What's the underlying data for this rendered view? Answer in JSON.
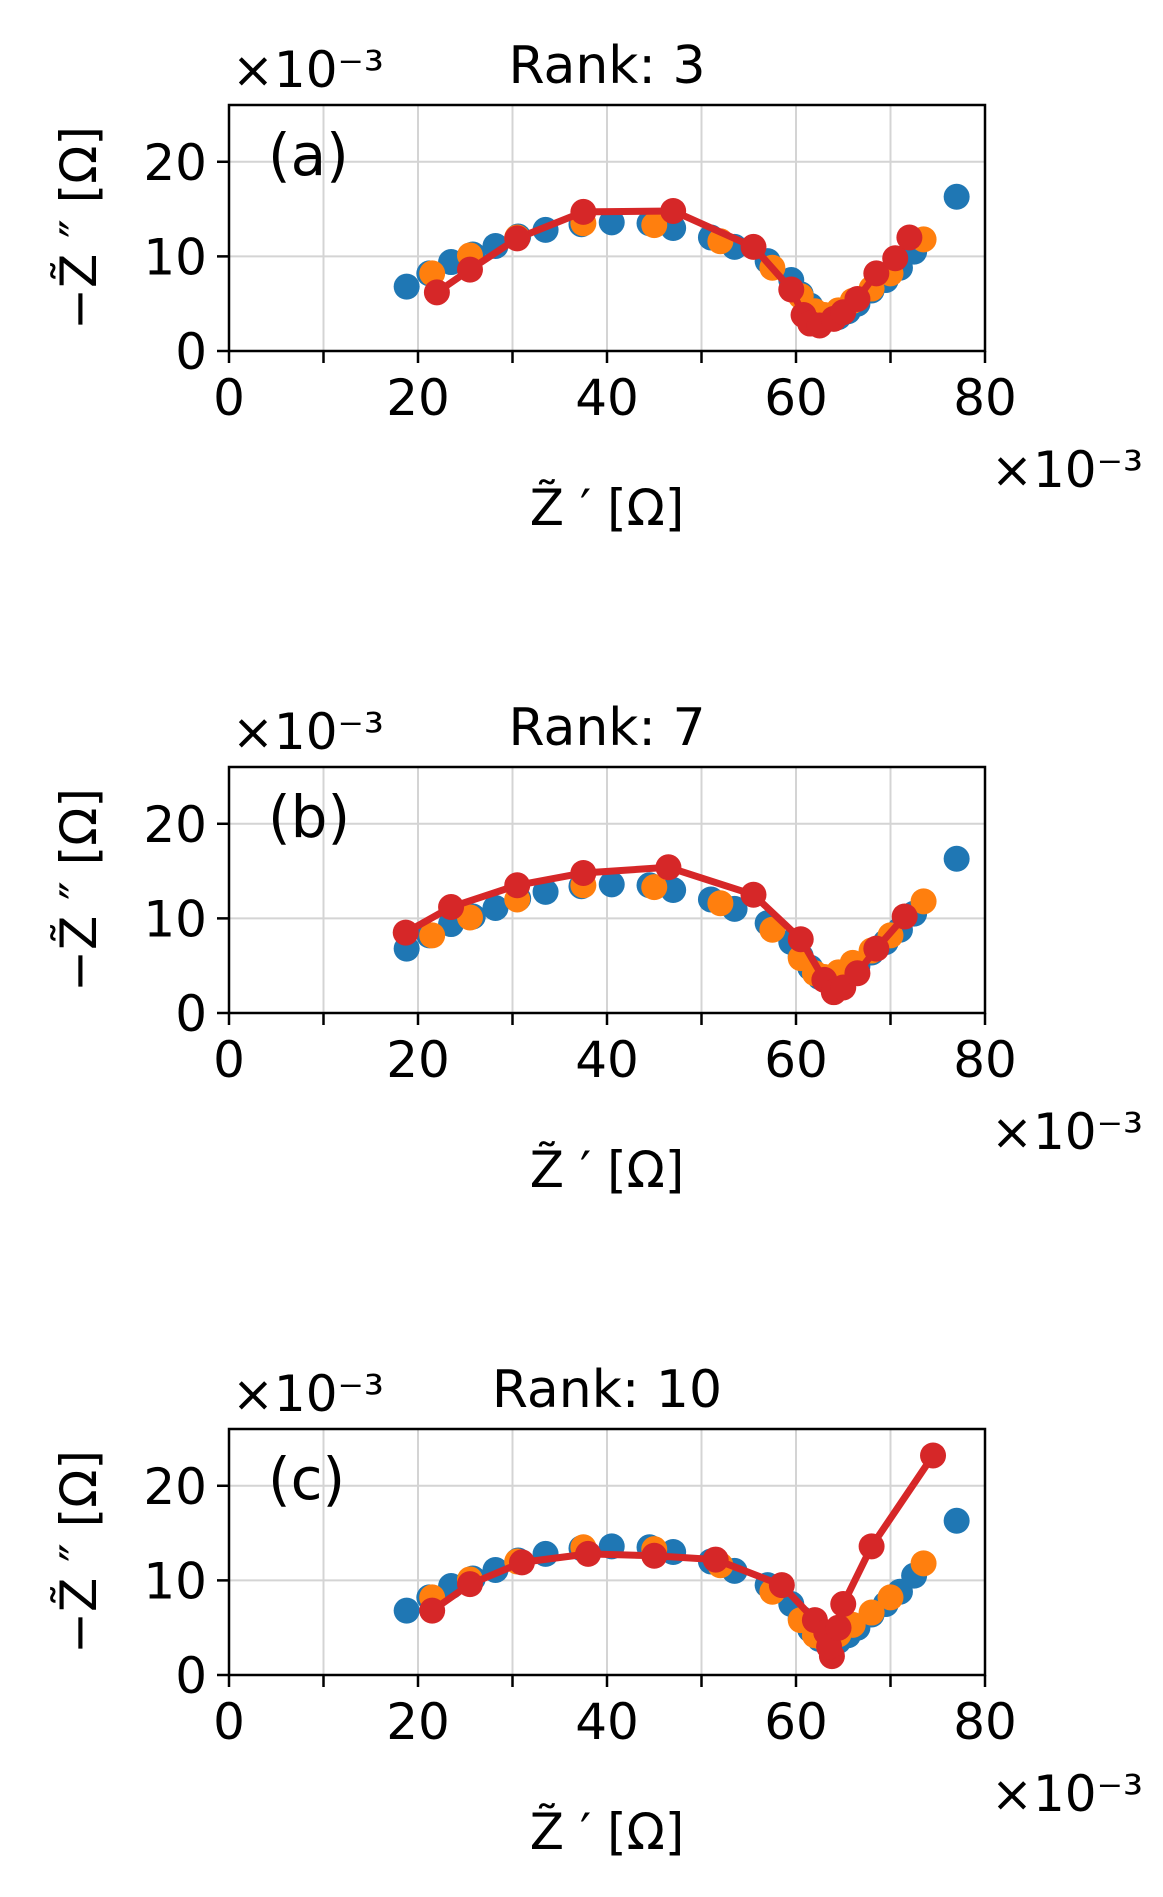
{
  "chart_data": [
    {
      "type": "scatter",
      "title": "Rank: 3",
      "panel_label": "(a)",
      "xlabel": "Z̃ ′ [Ω]",
      "ylabel": "−Z̃ ″ [Ω]",
      "x_multiplier": "×10⁻³",
      "y_multiplier": "×10⁻³",
      "xlim": [
        0,
        80
      ],
      "ylim": [
        0,
        26
      ],
      "xticks": [
        "0",
        "20",
        "40",
        "60",
        "80"
      ],
      "yticks": [
        "0",
        "10",
        "20"
      ],
      "grid": true,
      "series": [
        {
          "color": "#1f77b4",
          "style": "markers",
          "x": [
            18.8,
            21.2,
            23.5,
            25.8,
            28.2,
            30.6,
            33.5,
            37.3,
            40.5,
            44.5,
            47.0,
            51.0,
            53.5,
            57.0,
            59.5,
            60.5,
            61.5,
            62.5,
            63.5,
            64.5,
            65.5,
            66.5,
            68.0,
            69.5,
            71.0,
            72.5,
            77.0
          ],
          "y": [
            6.8,
            8.2,
            9.4,
            10.2,
            11.1,
            12.1,
            12.8,
            13.4,
            13.6,
            13.5,
            13.0,
            12.0,
            11.0,
            9.5,
            7.5,
            6.0,
            4.8,
            3.8,
            3.5,
            3.6,
            4.2,
            5.0,
            6.4,
            7.5,
            8.8,
            10.5,
            16.3
          ]
        },
        {
          "color": "#ff7f0e",
          "style": "markers",
          "x": [
            21.5,
            25.5,
            30.5,
            37.5,
            45.0,
            52.0,
            57.5,
            60.5,
            62.0,
            63.0,
            64.5,
            66.0,
            68.0,
            70.0,
            73.5
          ],
          "y": [
            8.2,
            10.1,
            12.0,
            13.5,
            13.3,
            11.6,
            8.8,
            5.8,
            4.2,
            3.8,
            4.3,
            5.3,
            6.6,
            8.2,
            11.8
          ]
        },
        {
          "color": "#d62728",
          "style": "line+markers",
          "x": [
            22.0,
            25.5,
            30.5,
            37.5,
            47.0,
            55.5,
            59.5,
            60.8,
            61.5,
            62.5,
            64.0,
            65.0,
            66.5,
            68.5,
            70.5,
            72.0
          ],
          "y": [
            6.2,
            8.6,
            11.9,
            14.7,
            14.8,
            11.0,
            6.5,
            3.8,
            2.9,
            2.7,
            3.4,
            4.1,
            5.5,
            8.2,
            9.8,
            12.0
          ]
        }
      ]
    },
    {
      "type": "scatter",
      "title": "Rank: 7",
      "panel_label": "(b)",
      "xlabel": "Z̃ ′ [Ω]",
      "ylabel": "−Z̃ ″ [Ω]",
      "x_multiplier": "×10⁻³",
      "y_multiplier": "×10⁻³",
      "xlim": [
        0,
        80
      ],
      "ylim": [
        0,
        26
      ],
      "xticks": [
        "0",
        "20",
        "40",
        "60",
        "80"
      ],
      "yticks": [
        "0",
        "10",
        "20"
      ],
      "grid": true,
      "series": [
        {
          "color": "#1f77b4",
          "style": "markers",
          "x": [
            18.8,
            21.2,
            23.5,
            25.8,
            28.2,
            30.6,
            33.5,
            37.3,
            40.5,
            44.5,
            47.0,
            51.0,
            53.5,
            57.0,
            59.5,
            60.5,
            61.5,
            62.5,
            63.5,
            64.5,
            65.5,
            66.5,
            68.0,
            69.5,
            71.0,
            72.5,
            77.0
          ],
          "y": [
            6.8,
            8.2,
            9.4,
            10.2,
            11.1,
            12.1,
            12.8,
            13.4,
            13.6,
            13.5,
            13.0,
            12.0,
            11.0,
            9.5,
            7.5,
            6.0,
            4.8,
            3.8,
            3.5,
            3.6,
            4.2,
            5.0,
            6.4,
            7.5,
            8.8,
            10.5,
            16.3
          ]
        },
        {
          "color": "#ff7f0e",
          "style": "markers",
          "x": [
            21.5,
            25.5,
            30.5,
            37.5,
            45.0,
            52.0,
            57.5,
            60.5,
            62.0,
            63.0,
            64.5,
            66.0,
            68.0,
            70.0,
            73.5
          ],
          "y": [
            8.2,
            10.1,
            12.0,
            13.5,
            13.3,
            11.6,
            8.8,
            5.8,
            4.2,
            3.8,
            4.3,
            5.3,
            6.6,
            8.2,
            11.8
          ]
        },
        {
          "color": "#d62728",
          "style": "line+markers",
          "x": [
            18.7,
            23.5,
            30.5,
            37.5,
            46.5,
            55.5,
            60.5,
            63.0,
            64.0,
            65.0,
            66.5,
            68.5,
            71.5
          ],
          "y": [
            8.5,
            11.2,
            13.5,
            14.8,
            15.4,
            12.5,
            7.8,
            3.5,
            2.2,
            2.7,
            4.2,
            6.8,
            10.2
          ]
        }
      ]
    },
    {
      "type": "scatter",
      "title": "Rank: 10",
      "panel_label": "(c)",
      "xlabel": "Z̃ ′ [Ω]",
      "ylabel": "−Z̃ ″ [Ω]",
      "x_multiplier": "×10⁻³",
      "y_multiplier": "×10⁻³",
      "xlim": [
        0,
        80
      ],
      "ylim": [
        0,
        26
      ],
      "xticks": [
        "0",
        "20",
        "40",
        "60",
        "80"
      ],
      "yticks": [
        "0",
        "10",
        "20"
      ],
      "grid": true,
      "series": [
        {
          "color": "#1f77b4",
          "style": "markers",
          "x": [
            18.8,
            21.2,
            23.5,
            25.8,
            28.2,
            30.6,
            33.5,
            37.3,
            40.5,
            44.5,
            47.0,
            51.0,
            53.5,
            57.0,
            59.5,
            60.5,
            61.5,
            62.5,
            63.5,
            64.5,
            65.5,
            66.5,
            68.0,
            69.5,
            71.0,
            72.5,
            77.0
          ],
          "y": [
            6.8,
            8.2,
            9.4,
            10.2,
            11.1,
            12.1,
            12.8,
            13.4,
            13.6,
            13.5,
            13.0,
            12.0,
            11.0,
            9.5,
            7.5,
            6.0,
            4.8,
            3.8,
            3.5,
            3.6,
            4.2,
            5.0,
            6.4,
            7.5,
            8.8,
            10.5,
            16.3
          ]
        },
        {
          "color": "#ff7f0e",
          "style": "markers",
          "x": [
            21.5,
            25.5,
            30.5,
            37.5,
            45.0,
            52.0,
            57.5,
            60.5,
            62.0,
            63.0,
            64.5,
            66.0,
            68.0,
            70.0,
            73.5
          ],
          "y": [
            8.2,
            10.1,
            12.0,
            13.5,
            13.3,
            11.6,
            8.8,
            5.8,
            4.2,
            3.8,
            4.3,
            5.3,
            6.6,
            8.2,
            11.8
          ]
        },
        {
          "color": "#d62728",
          "style": "line+markers",
          "x": [
            21.5,
            25.5,
            31.0,
            38.0,
            45.0,
            51.5,
            58.5,
            62.0,
            63.2,
            63.8,
            63.5,
            64.5,
            65.0,
            68.0,
            74.5
          ],
          "y": [
            6.8,
            9.6,
            11.9,
            12.8,
            12.6,
            12.2,
            9.5,
            5.8,
            4.5,
            2.0,
            3.0,
            5.0,
            7.5,
            13.6,
            23.2
          ]
        }
      ]
    }
  ]
}
